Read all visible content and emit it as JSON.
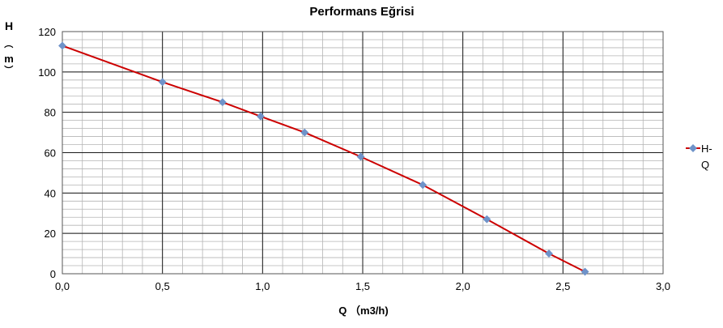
{
  "chart_data": {
    "type": "line",
    "title": "Performans Eğrisi",
    "xlabel": "Q （m3/h)",
    "ylabel_chars": [
      "H",
      "（",
      "m",
      "）"
    ],
    "xlim": [
      0,
      3
    ],
    "ylim": [
      0,
      120
    ],
    "x_major_ticks": [
      0,
      0.5,
      1,
      1.5,
      2,
      2.5,
      3
    ],
    "x_tick_labels": [
      "0,0",
      "0,5",
      "1,0",
      "1,5",
      "2,0",
      "2,5",
      "3,0"
    ],
    "y_major_ticks": [
      0,
      20,
      40,
      60,
      80,
      100,
      120
    ],
    "y_tick_labels": [
      "0",
      "20",
      "40",
      "60",
      "80",
      "100",
      "120"
    ],
    "x_minor_step": 0.1,
    "y_minor_step": 4,
    "grid": true,
    "legend_position": "right",
    "series": [
      {
        "name": "H-Q",
        "legend_lines": [
          "H-",
          "Q"
        ],
        "line_color": "#cc0000",
        "marker_color": "#6f93c9",
        "x": [
          0.0,
          0.5,
          0.8,
          0.99,
          1.21,
          1.49,
          1.8,
          2.12,
          2.43,
          2.61
        ],
        "y": [
          113,
          95,
          85,
          78,
          70,
          58,
          44,
          27,
          10,
          1
        ]
      }
    ]
  }
}
